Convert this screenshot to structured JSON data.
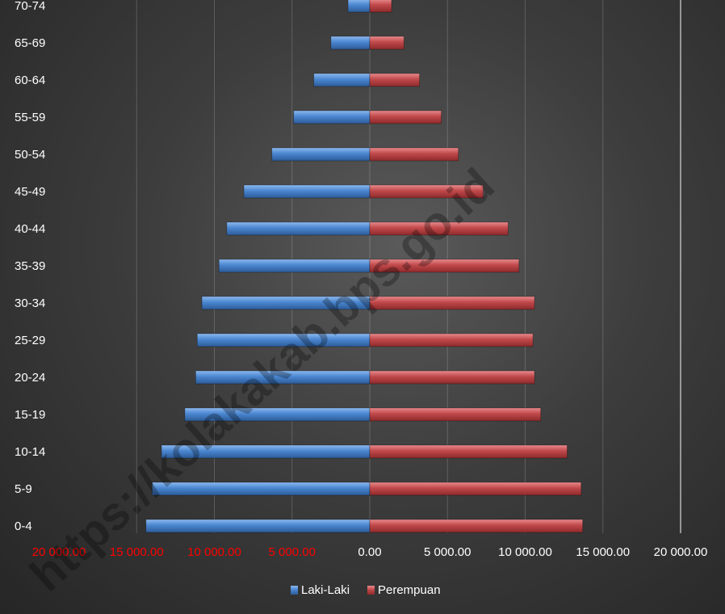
{
  "chart_data": {
    "type": "bar",
    "orientation": "horizontal",
    "categories": [
      "0-4",
      "5-9",
      "10-14",
      "15-19",
      "20-24",
      "25-29",
      "30-34",
      "35-39",
      "40-44",
      "45-49",
      "50-54",
      "55-59",
      "60-64",
      "65-69",
      "70-74"
    ],
    "series": [
      {
        "name": "Laki-Laki",
        "color": "#4a86d0",
        "values": [
          -14400,
          -14000,
          -13400,
          -11900,
          -11200,
          -11100,
          -10800,
          -9700,
          -9200,
          -8100,
          -6300,
          -4900,
          -3600,
          -2500,
          -1400
        ]
      },
      {
        "name": "Perempuan",
        "color": "#c0484a",
        "values": [
          13700,
          13600,
          12700,
          11000,
          10600,
          10500,
          10600,
          9600,
          8900,
          7300,
          5700,
          4600,
          3200,
          2200,
          1400
        ]
      }
    ],
    "x_ticks": [
      "20 000.00",
      "15 000.00",
      "10 000.00",
      "5 000.00",
      "0.00",
      "5 000.00",
      "10 000.00",
      "15 000.00",
      "20 000.00"
    ],
    "x_tick_values": [
      -20000,
      -15000,
      -10000,
      -5000,
      0,
      5000,
      10000,
      15000,
      20000
    ],
    "negative_tick_color": "#ff0000",
    "positive_tick_color": "#ffffff",
    "xlim": [
      -20000,
      20000
    ],
    "grid": true,
    "legend_position": "bottom",
    "title": "",
    "xlabel": "",
    "ylabel": ""
  },
  "watermark_text": "https://kolakakab.bps.go.id"
}
